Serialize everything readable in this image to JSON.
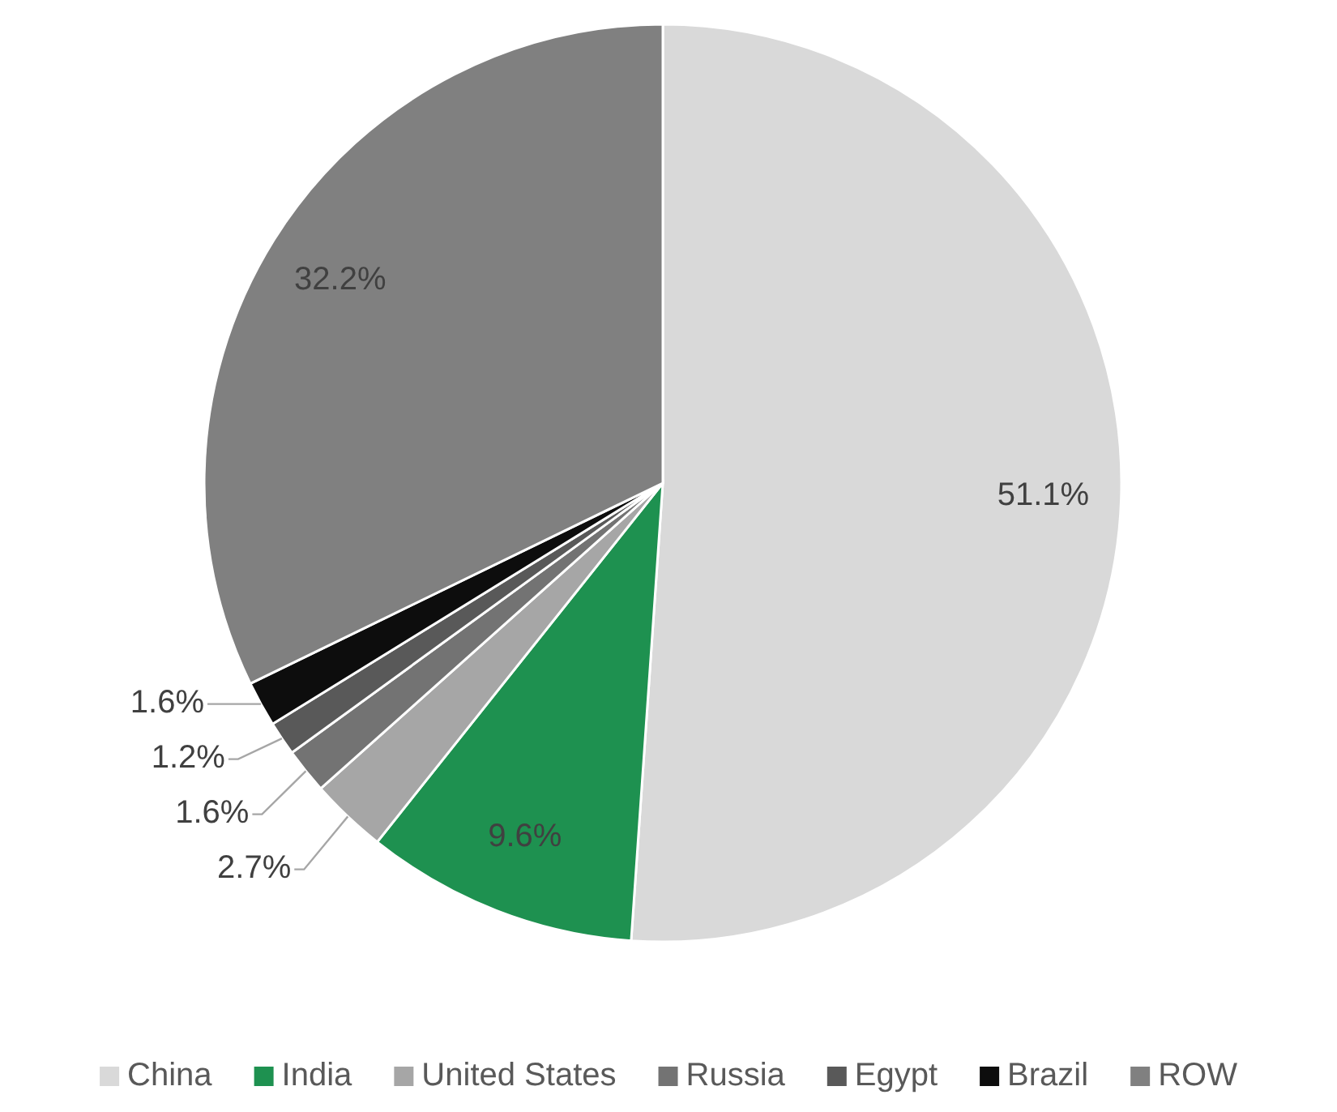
{
  "chart_data": {
    "type": "pie",
    "categories": [
      "China",
      "India",
      "United States",
      "Russia",
      "Egypt",
      "Brazil",
      "ROW"
    ],
    "values": [
      51.1,
      9.6,
      2.7,
      1.6,
      1.2,
      1.6,
      32.2
    ],
    "value_labels": [
      "51.1%",
      "9.6%",
      "2.7%",
      "1.6%",
      "1.2%",
      "1.6%",
      "32.2%"
    ],
    "colors": [
      "#d9d9d9",
      "#1e9150",
      "#a6a6a6",
      "#737373",
      "#595959",
      "#0d0d0d",
      "#808080"
    ],
    "legend": "bottom"
  }
}
